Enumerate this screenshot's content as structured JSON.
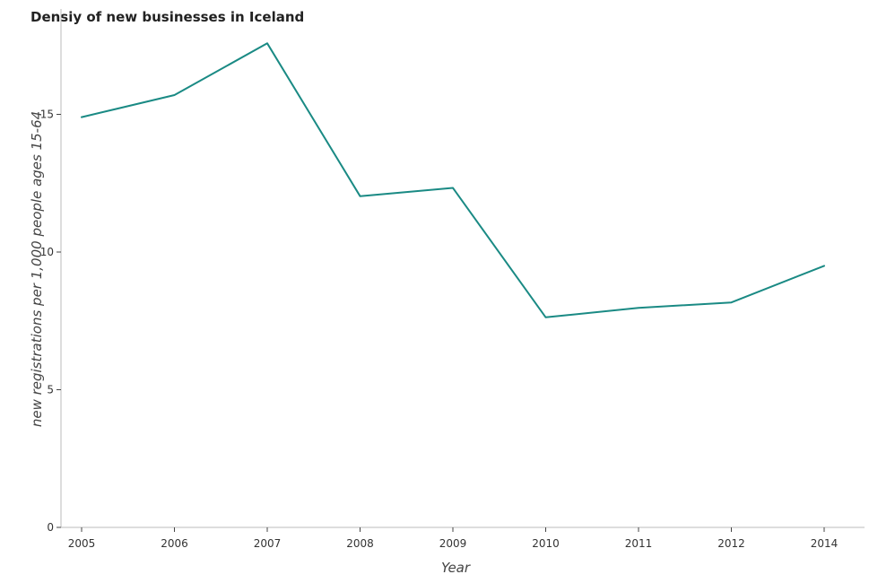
{
  "chart_data": {
    "type": "line",
    "title": "Densiy of new businesses in Iceland",
    "xlabel": "Year",
    "ylabel": "new registrations per 1,000 people ages 15-64",
    "categories": [
      "2005",
      "2006",
      "2007",
      "2008",
      "2009",
      "2010",
      "2011",
      "2012",
      "2014"
    ],
    "series": [
      {
        "values": [
          14.9,
          15.7,
          17.58,
          12.03,
          12.33,
          7.63,
          7.97,
          8.17,
          9.5
        ],
        "color": "#1a8a84"
      }
    ],
    "yticks": [
      "0",
      "5",
      "10",
      "15"
    ],
    "ylim": [
      0,
      18
    ],
    "grid": false,
    "legend": "none"
  }
}
